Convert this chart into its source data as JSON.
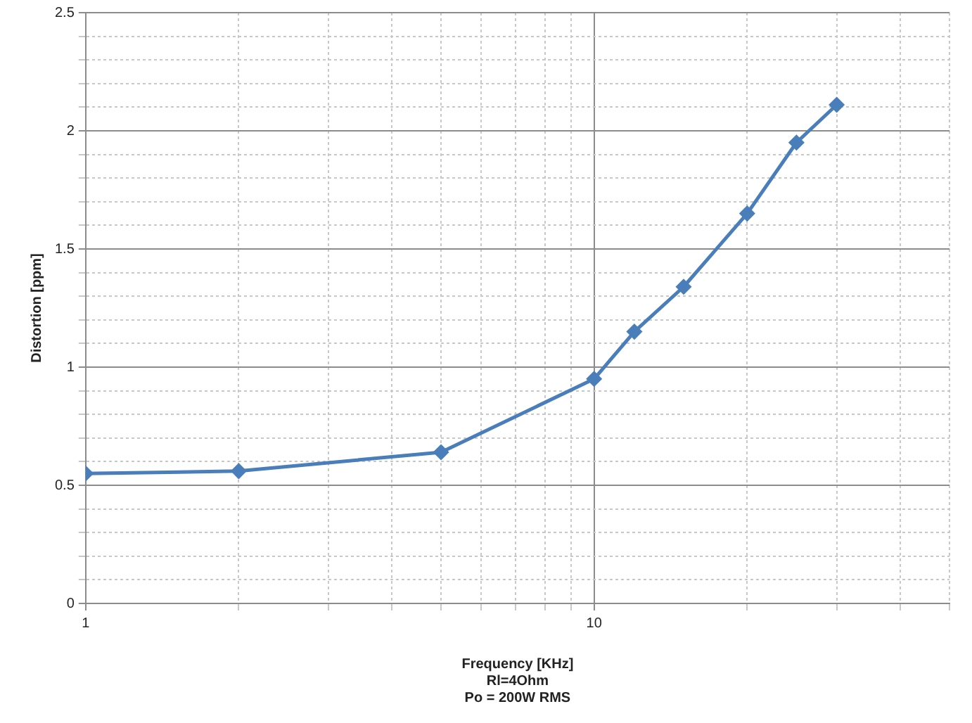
{
  "chart_data": {
    "type": "line",
    "xlabel": "Frequency [KHz]",
    "ylabel": "Distortion [ppm]",
    "annotations": [
      "Rl=4Ohm",
      "Po = 200W RMS"
    ],
    "x": [
      1,
      2,
      5,
      10,
      12,
      15,
      20,
      25,
      30
    ],
    "series": [
      {
        "color": "#4a7ebb",
        "values": [
          0.55,
          0.56,
          0.64,
          0.95,
          1.15,
          1.34,
          1.65,
          1.95,
          2.11
        ]
      }
    ],
    "log": "x",
    "xlim": [
      1,
      50
    ],
    "xticks": [
      1,
      {
        "value": 2,
        "label": null
      },
      {
        "value": 3,
        "label": null
      },
      {
        "value": 4,
        "label": null
      },
      {
        "value": 5,
        "label": null
      },
      {
        "value": 6,
        "label": null
      },
      {
        "value": 7,
        "label": null
      },
      {
        "value": 8,
        "label": null
      },
      {
        "value": 9,
        "label": null
      },
      10,
      {
        "value": 20,
        "label": null
      },
      {
        "value": 30,
        "label": null
      },
      {
        "value": 40,
        "label": null
      },
      {
        "value": 50,
        "label": null
      }
    ],
    "ylim": [
      0,
      2.5
    ],
    "yticks": [
      0,
      {
        "value": 0.1,
        "label": null
      },
      {
        "value": 0.2,
        "label": null
      },
      {
        "value": 0.3,
        "label": null
      },
      {
        "value": 0.4,
        "label": null
      },
      0.5,
      {
        "value": 0.6,
        "label": null
      },
      {
        "value": 0.7,
        "label": null
      },
      {
        "value": 0.8,
        "label": null
      },
      {
        "value": 0.9,
        "label": null
      },
      1,
      {
        "value": 1.1,
        "label": null
      },
      {
        "value": 1.2,
        "label": null
      },
      {
        "value": 1.3,
        "label": null
      },
      {
        "value": 1.4,
        "label": null
      },
      1.5,
      {
        "value": 1.6,
        "label": null
      },
      {
        "value": 1.7,
        "label": null
      },
      {
        "value": 1.8,
        "label": null
      },
      {
        "value": 1.9,
        "label": null
      },
      2,
      {
        "value": 2.1,
        "label": null
      },
      {
        "value": 2.2,
        "label": null
      },
      {
        "value": 2.3,
        "label": null
      },
      {
        "value": 2.4,
        "label": null
      },
      2.5
    ],
    "grid": true,
    "legend": false,
    "marker": "diamond",
    "line_style": "solid"
  }
}
